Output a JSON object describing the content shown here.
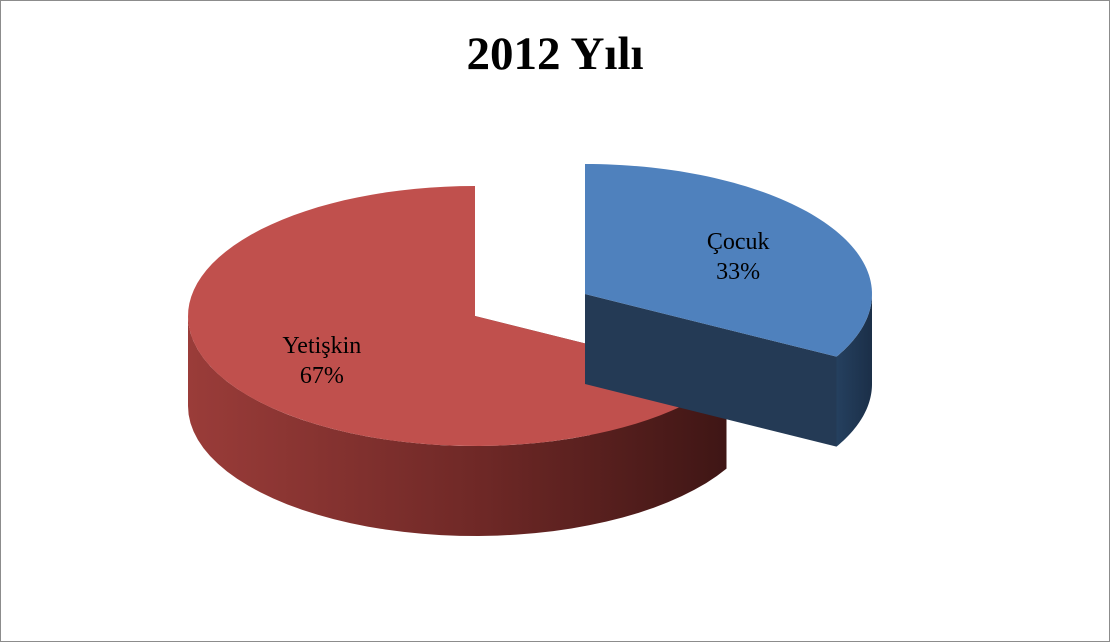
{
  "chart_data": {
    "type": "pie",
    "title": "2012 Yılı",
    "slices": [
      {
        "label": "Çocuk",
        "value": 33,
        "value_label": "33%",
        "color": "#4F81BD",
        "exploded": true
      },
      {
        "label": "Yetişkin",
        "value": 67,
        "value_label": "67%",
        "color": "#C0504D",
        "exploded": false
      }
    ],
    "style": "3d-exploded",
    "legend": "none"
  }
}
